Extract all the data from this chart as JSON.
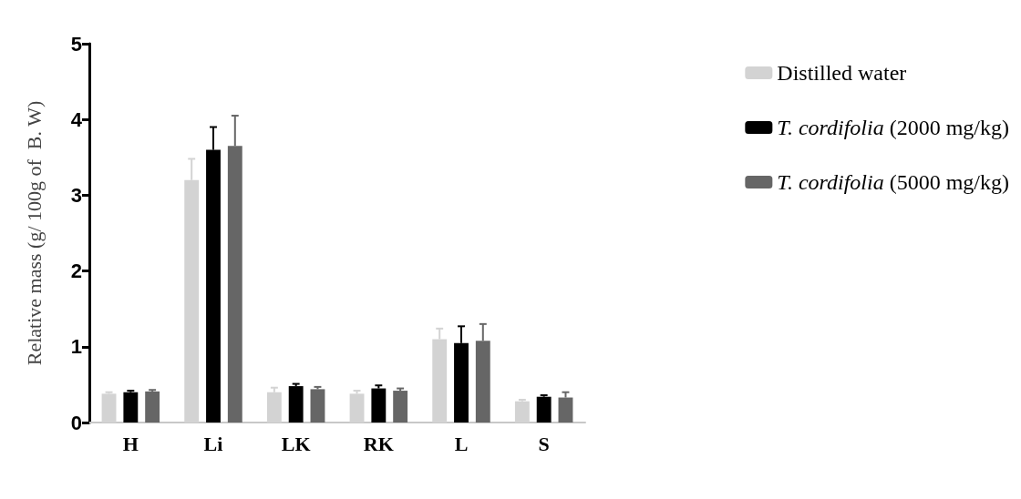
{
  "chart_data": {
    "type": "bar",
    "ylabel": "Relative mass (g/ 100g of  B. W)",
    "categories": [
      "H",
      "Li",
      "LK",
      "RK",
      "L",
      "S"
    ],
    "series": [
      {
        "name": "Distilled water",
        "color": "#d3d3d3",
        "values": [
          0.38,
          3.2,
          0.4,
          0.38,
          1.1,
          0.28
        ],
        "errors": [
          [
            0.38,
            0.4
          ],
          [
            3.2,
            3.48
          ],
          [
            0.4,
            0.46
          ],
          [
            0.38,
            0.42
          ],
          [
            1.1,
            1.24
          ],
          [
            0.28,
            0.3
          ]
        ]
      },
      {
        "name": "T. cordifolia (2000 mg/kg)",
        "color": "#000000",
        "values": [
          0.4,
          3.6,
          0.48,
          0.45,
          1.05,
          0.34
        ],
        "errors": [
          [
            0.4,
            0.42
          ],
          [
            3.6,
            3.9
          ],
          [
            0.48,
            0.51
          ],
          [
            0.45,
            0.49
          ],
          [
            1.05,
            1.27
          ],
          [
            0.34,
            0.36
          ]
        ]
      },
      {
        "name": "T. cordifolia (5000 mg/kg)",
        "color": "#666666",
        "values": [
          0.41,
          3.65,
          0.44,
          0.42,
          1.08,
          0.33
        ],
        "errors": [
          [
            0.41,
            0.43
          ],
          [
            3.65,
            4.05
          ],
          [
            0.44,
            0.47
          ],
          [
            0.42,
            0.45
          ],
          [
            1.08,
            1.3
          ],
          [
            0.33,
            0.4
          ]
        ]
      }
    ],
    "ylim": [
      0,
      5
    ],
    "yticks": [
      0,
      1,
      2,
      3,
      4,
      5
    ],
    "grid": false,
    "legend": "top right"
  }
}
